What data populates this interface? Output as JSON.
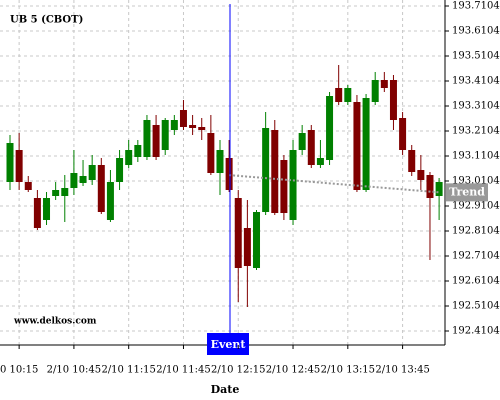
{
  "chart_data": {
    "type": "candlestick",
    "title": "UB 5 (CBOT)",
    "watermark": "www.delkos.com",
    "x_label": "Date",
    "categories": [
      null,
      "0 10:15",
      null,
      null,
      null,
      null,
      null,
      "2/10 10:45",
      null,
      null,
      null,
      null,
      null,
      "2/10 11:15",
      null,
      null,
      null,
      null,
      null,
      "2/10 11:45",
      null,
      null,
      null,
      null,
      null,
      "2/10 12:15",
      null,
      null,
      null,
      null,
      null,
      "2/10 12:45",
      null,
      null,
      null,
      null,
      null,
      "2/10 13:15",
      null,
      null,
      null,
      null,
      null,
      "2/10 13:45",
      null,
      null,
      null,
      null
    ],
    "open": [
      193.0064,
      193.1344,
      193.0064,
      192.9424,
      192.8544,
      192.9504,
      192.9504,
      192.9824,
      193.0024,
      193.0144,
      193.0744,
      192.8544,
      193.0064,
      193.0744,
      193.1064,
      193.1064,
      193.2344,
      193.1344,
      193.2144,
      193.2944,
      193.2344,
      193.2264,
      193.2024,
      193.0424,
      193.1024,
      192.9424,
      192.8224,
      192.6624,
      192.8864,
      193.2144,
      193.0944,
      192.8544,
      193.1344,
      193.2144,
      193.0744,
      193.0944,
      193.3824,
      193.3264,
      193.3264,
      192.9744,
      193.3264,
      193.4144,
      193.4144,
      193.2624,
      193.1344,
      193.0544,
      193.0344,
      192.9504
    ],
    "high": [
      193.1944,
      193.2024,
      193.0304,
      192.9744,
      192.9664,
      193.0064,
      193.0344,
      193.1344,
      193.0944,
      193.1144,
      193.1024,
      193.0544,
      193.1344,
      193.1744,
      193.1744,
      193.2744,
      193.2744,
      193.2624,
      193.2744,
      193.3344,
      193.2744,
      193.2624,
      193.2744,
      193.1744,
      193.1744,
      192.9744,
      192.9344,
      192.8944,
      193.2864,
      193.2544,
      193.1144,
      193.1744,
      193.2344,
      193.2344,
      193.1744,
      193.3664,
      193.4744,
      193.3944,
      193.3544,
      193.3584,
      193.4464,
      193.4464,
      193.4344,
      193.2864,
      193.1544,
      193.1144,
      193.0464,
      193.0224
    ],
    "low": [
      192.9744,
      192.9744,
      192.9664,
      192.8144,
      192.8344,
      192.9344,
      192.8464,
      192.9544,
      192.9904,
      192.9944,
      192.8784,
      192.8464,
      192.9744,
      193.0624,
      193.0864,
      193.0944,
      193.0944,
      193.1144,
      193.1944,
      193.2144,
      193.1944,
      193.1744,
      193.0344,
      192.9544,
      192.9664,
      192.5264,
      192.5064,
      192.6544,
      192.8744,
      192.8744,
      192.8544,
      192.8344,
      193.1144,
      193.0624,
      193.0624,
      193.0744,
      193.3144,
      193.3144,
      192.9664,
      192.9664,
      193.3144,
      193.3664,
      193.2144,
      193.1144,
      193.0304,
      192.9744,
      192.6944,
      192.8544
    ],
    "close": [
      193.1624,
      193.0064,
      192.9744,
      192.8224,
      192.9424,
      192.9744,
      192.9824,
      193.0424,
      193.0304,
      193.0744,
      192.8864,
      193.0064,
      193.1024,
      193.1344,
      193.1544,
      193.2544,
      193.1064,
      193.2544,
      193.2544,
      193.2264,
      193.2224,
      193.2144,
      193.0424,
      193.1344,
      192.9744,
      192.6624,
      192.6704,
      192.8864,
      193.2224,
      192.8824,
      192.8824,
      193.1344,
      193.2024,
      193.0744,
      193.1024,
      193.3504,
      193.3264,
      193.3824,
      192.9744,
      193.3424,
      193.4144,
      193.3824,
      193.2544,
      193.1344,
      193.0464,
      193.0144,
      192.9424,
      193.0064
    ],
    "up_color": "#008000",
    "down_color": "#800000",
    "trend": {
      "name": "Trend",
      "color": "#999999",
      "values": [
        null,
        null,
        null,
        null,
        null,
        null,
        null,
        null,
        null,
        null,
        null,
        null,
        null,
        null,
        null,
        null,
        null,
        null,
        null,
        null,
        null,
        null,
        null,
        null,
        193.034,
        193.031,
        193.028,
        193.025,
        193.022,
        193.019,
        193.016,
        193.013,
        193.01,
        193.007,
        193.004,
        193.001,
        192.998,
        192.995,
        192.992,
        192.989,
        192.986,
        192.983,
        192.98,
        192.977,
        192.974,
        192.971,
        192.968,
        192.965
      ]
    },
    "event": {
      "label": "Event",
      "color": "#0000ff"
    },
    "ylim": [
      192.3544,
      193.7344
    ],
    "yticks": [
      192.4104,
      192.5104,
      192.6104,
      192.7104,
      192.8104,
      192.9104,
      193.0104,
      193.1104,
      193.2104,
      193.3104,
      193.4104,
      193.5104,
      193.6104,
      193.7104
    ],
    "grid": true
  }
}
